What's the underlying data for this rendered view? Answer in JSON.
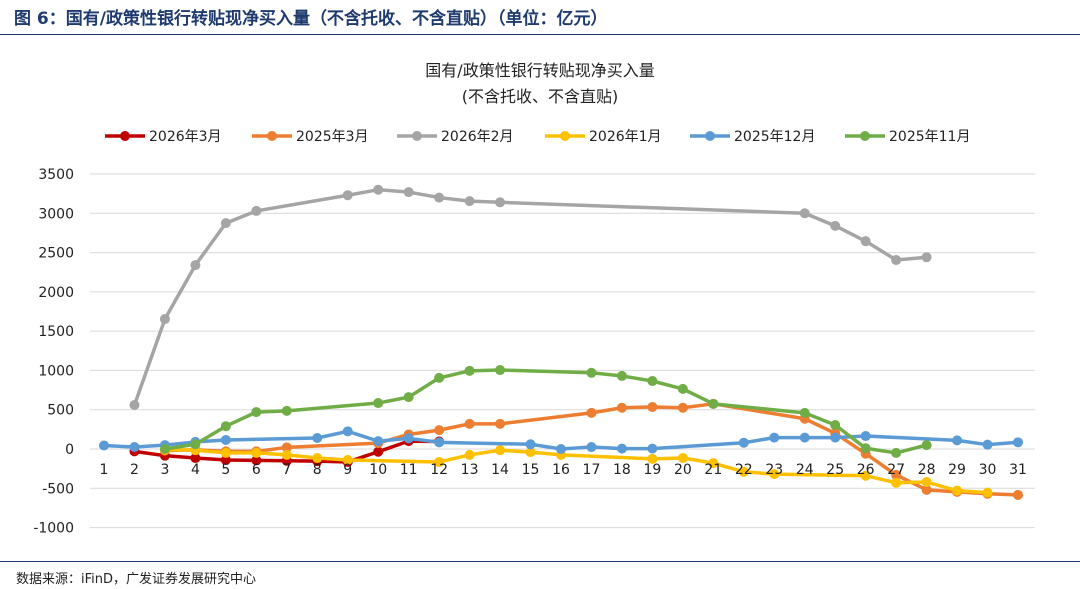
{
  "figure_title": "图 6：国有/政策性银行转贴现净买入量（不含托收、不含直贴）（单位：亿元）",
  "source": "数据来源：iFinD，广发证券发展研究中心",
  "chart_data": {
    "type": "line",
    "title": "国有/政策性银行转贴现净买入量",
    "subtitle": "(不含托收、不含直贴)",
    "xlabel": "",
    "ylabel": "",
    "x": [
      1,
      2,
      3,
      4,
      5,
      6,
      7,
      8,
      9,
      10,
      11,
      12,
      13,
      14,
      15,
      16,
      17,
      18,
      19,
      20,
      21,
      22,
      23,
      24,
      25,
      26,
      27,
      28,
      29,
      30,
      31
    ],
    "ylim": [
      -1000,
      3500
    ],
    "yticks": [
      -1000,
      -500,
      0,
      500,
      1000,
      1500,
      2000,
      2500,
      3000,
      3500
    ],
    "grid": true,
    "legend_position": "top",
    "series": [
      {
        "name": "2026年3月",
        "color": "#c00000",
        "points": [
          [
            2,
            -30
          ],
          [
            3,
            -85
          ],
          [
            4,
            -115
          ],
          [
            5,
            -140
          ],
          [
            6,
            -145
          ],
          [
            7,
            -150
          ],
          [
            8,
            -155
          ],
          [
            9,
            -165
          ],
          [
            10,
            -35
          ],
          [
            11,
            100
          ],
          [
            12,
            95
          ]
        ]
      },
      {
        "name": "2025年3月",
        "color": "#ed7d31",
        "points": [
          [
            3,
            -20
          ],
          [
            4,
            -10
          ],
          [
            5,
            -30
          ],
          [
            6,
            -30
          ],
          [
            7,
            20
          ],
          [
            10,
            75
          ],
          [
            11,
            185
          ],
          [
            12,
            240
          ],
          [
            13,
            320
          ],
          [
            14,
            320
          ],
          [
            17,
            460
          ],
          [
            18,
            525
          ],
          [
            19,
            535
          ],
          [
            20,
            525
          ],
          [
            21,
            575
          ],
          [
            24,
            385
          ],
          [
            25,
            200
          ],
          [
            26,
            -60
          ],
          [
            27,
            -330
          ],
          [
            28,
            -520
          ],
          [
            29,
            -545
          ],
          [
            30,
            -570
          ],
          [
            31,
            -585
          ]
        ]
      },
      {
        "name": "2026年2月",
        "color": "#a5a5a5",
        "points": [
          [
            2,
            560
          ],
          [
            3,
            1654
          ],
          [
            4,
            2340
          ],
          [
            5,
            2875
          ],
          [
            6,
            3030
          ],
          [
            9,
            3230
          ],
          [
            10,
            3300
          ],
          [
            11,
            3270
          ],
          [
            12,
            3200
          ],
          [
            13,
            3155
          ],
          [
            14,
            3140
          ],
          [
            24,
            3000
          ],
          [
            25,
            2840
          ],
          [
            26,
            2645
          ],
          [
            27,
            2405
          ],
          [
            28,
            2440
          ]
        ]
      },
      {
        "name": "2026年1月",
        "color": "#ffc000",
        "points": [
          [
            3,
            -10
          ],
          [
            4,
            -15
          ],
          [
            5,
            -50
          ],
          [
            6,
            -50
          ],
          [
            7,
            -75
          ],
          [
            8,
            -115
          ],
          [
            9,
            -140
          ],
          [
            12,
            -165
          ],
          [
            13,
            -75
          ],
          [
            14,
            -15
          ],
          [
            15,
            -40
          ],
          [
            16,
            -75
          ],
          [
            19,
            -125
          ],
          [
            20,
            -115
          ],
          [
            21,
            -180
          ],
          [
            22,
            -290
          ],
          [
            23,
            -320
          ],
          [
            26,
            -340
          ],
          [
            27,
            -430
          ],
          [
            28,
            -420
          ],
          [
            29,
            -530
          ],
          [
            30,
            -555
          ]
        ]
      },
      {
        "name": "2025年12月",
        "color": "#5b9bd5",
        "points": [
          [
            1,
            45
          ],
          [
            2,
            25
          ],
          [
            3,
            50
          ],
          [
            4,
            90
          ],
          [
            5,
            115
          ],
          [
            8,
            140
          ],
          [
            9,
            225
          ],
          [
            10,
            100
          ],
          [
            11,
            135
          ],
          [
            12,
            85
          ],
          [
            15,
            60
          ],
          [
            16,
            0
          ],
          [
            17,
            25
          ],
          [
            18,
            5
          ],
          [
            19,
            5
          ],
          [
            22,
            80
          ],
          [
            23,
            145
          ],
          [
            24,
            145
          ],
          [
            25,
            145
          ],
          [
            26,
            165
          ],
          [
            29,
            110
          ],
          [
            30,
            55
          ],
          [
            31,
            85
          ]
        ]
      },
      {
        "name": "2025年11月",
        "color": "#70ad47",
        "points": [
          [
            3,
            0
          ],
          [
            4,
            60
          ],
          [
            5,
            290
          ],
          [
            6,
            470
          ],
          [
            7,
            485
          ],
          [
            10,
            585
          ],
          [
            11,
            660
          ],
          [
            12,
            905
          ],
          [
            13,
            995
          ],
          [
            14,
            1005
          ],
          [
            17,
            970
          ],
          [
            18,
            930
          ],
          [
            19,
            865
          ],
          [
            20,
            765
          ],
          [
            21,
            575
          ],
          [
            24,
            460
          ],
          [
            25,
            305
          ],
          [
            26,
            10
          ],
          [
            27,
            -50
          ],
          [
            28,
            50
          ]
        ]
      }
    ]
  }
}
